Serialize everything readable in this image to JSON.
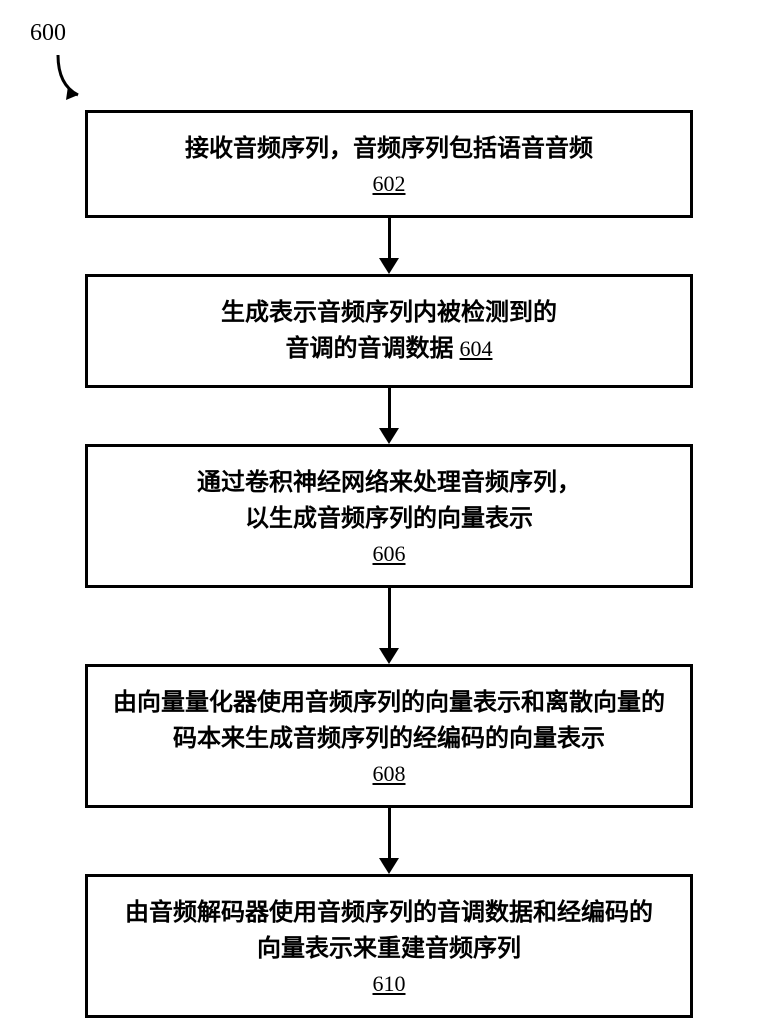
{
  "diagram": {
    "label": "600",
    "background_color": "#ffffff",
    "stroke_color": "#000000",
    "box_border_width": 3,
    "font_family": "Songti SC, SimSun, serif",
    "text_fontsize": 24,
    "ref_fontsize": 22,
    "arrow_head_width": 20,
    "arrow_head_height": 16,
    "steps": [
      {
        "text_lines": [
          "接收音频序列，音频序列包括语音音频"
        ],
        "ref": "602",
        "inline_ref": false,
        "connector_after": 40
      },
      {
        "text_lines": [
          "生成表示音频序列内被检测到的",
          "音调的音调数据"
        ],
        "ref": "604",
        "inline_ref": true,
        "connector_after": 40
      },
      {
        "text_lines": [
          "通过卷积神经网络来处理音频序列，",
          "以生成音频序列的向量表示"
        ],
        "ref": "606",
        "inline_ref": false,
        "connector_after": 60
      },
      {
        "text_lines": [
          "由向量量化器使用音频序列的向量表示和离散向量的",
          "码本来生成音频序列的经编码的向量表示"
        ],
        "ref": "608",
        "inline_ref": false,
        "connector_after": 50
      },
      {
        "text_lines": [
          "由音频解码器使用音频序列的音调数据和经编码的",
          "向量表示来重建音频序列"
        ],
        "ref": "610",
        "inline_ref": false,
        "connector_after": 0
      }
    ]
  }
}
